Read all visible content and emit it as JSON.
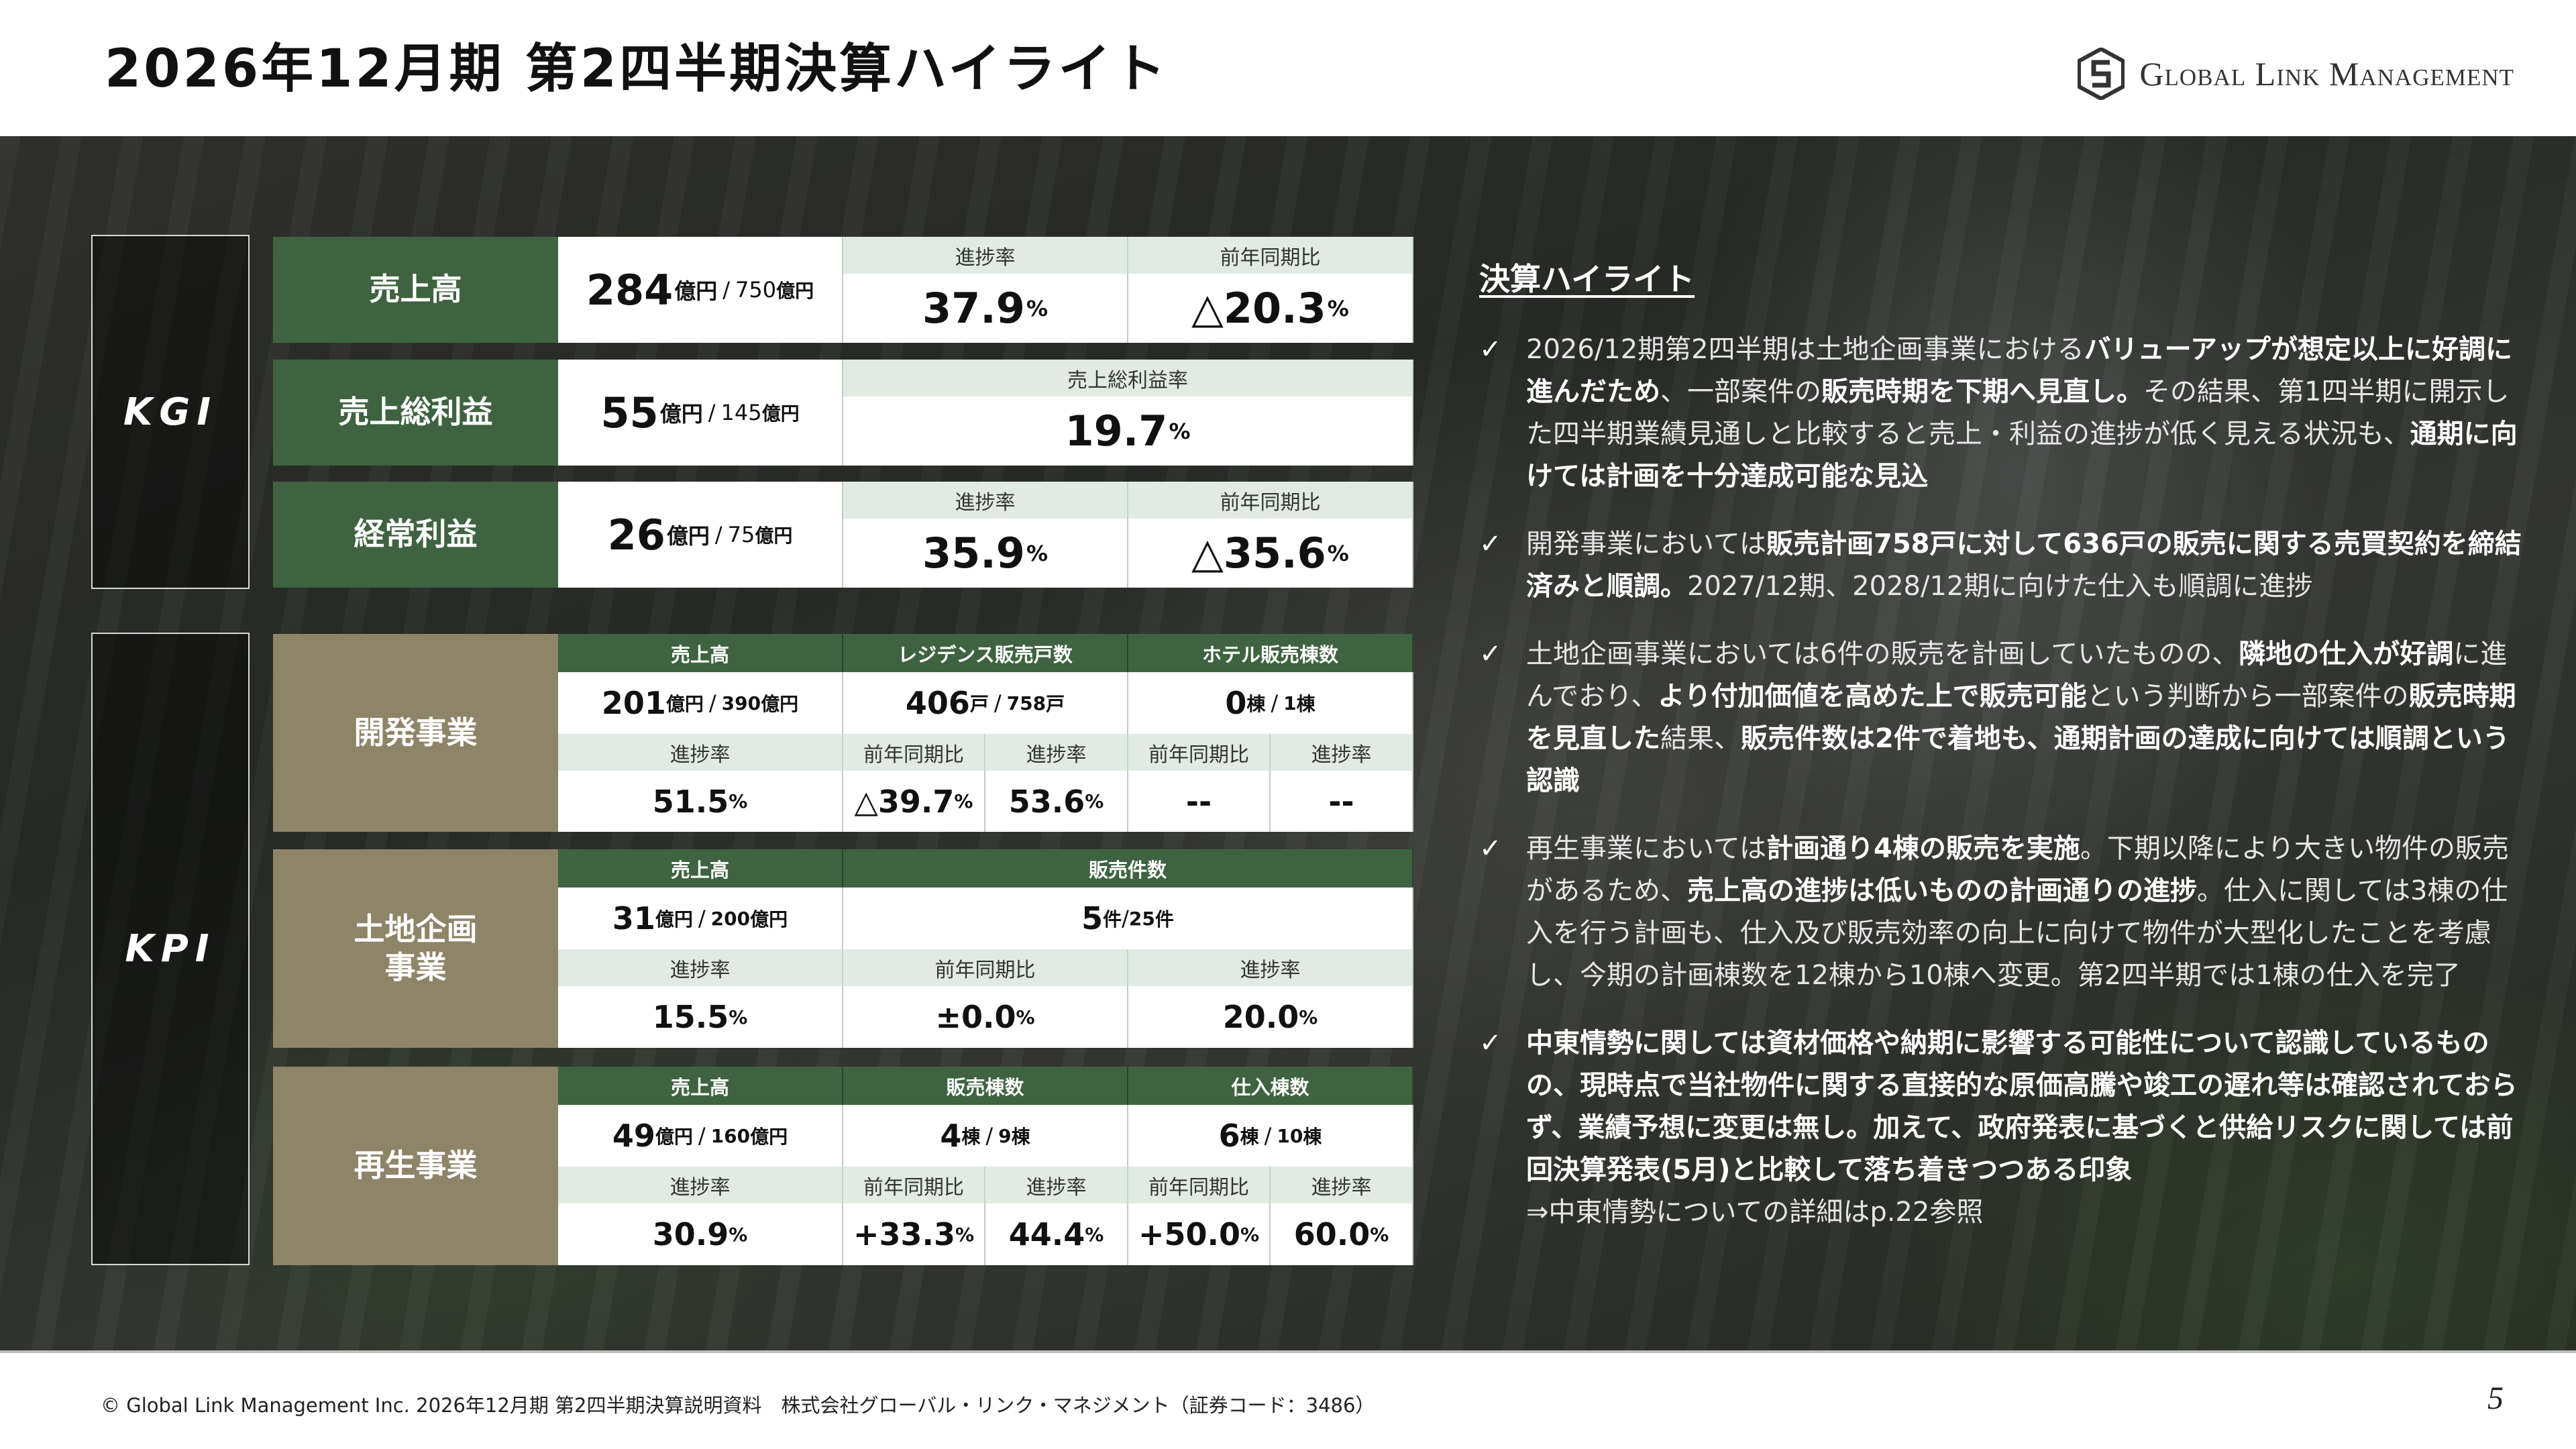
{
  "title": "2026年12月期 第2四半期決算ハイライト",
  "logo": {
    "icon": "gs-monogram-icon",
    "text": "Global Link Management"
  },
  "footer": {
    "text": "© Global Link Management Inc. 2026年12月期 第2四半期決算説明資料　株式会社グローバル・リンク・マネジメント（証券コード：3486）",
    "page": "5"
  },
  "kgi": {
    "label": "KGI",
    "rows": [
      {
        "name": "売上高",
        "value": "284",
        "unit": "億円",
        "target": "750",
        "target_unit": "億円",
        "metrics": [
          {
            "label": "進捗率",
            "value": "37.9",
            "unit": "%"
          },
          {
            "label": "前年同期比",
            "value": "△20.3",
            "unit": "%"
          }
        ]
      },
      {
        "name": "売上総利益",
        "value": "55",
        "unit": "億円",
        "target": "145",
        "target_unit": "億円",
        "metrics": [
          {
            "label": "売上総利益率",
            "value": "19.7",
            "unit": "%"
          }
        ]
      },
      {
        "name": "経常利益",
        "value": "26",
        "unit": "億円",
        "target": "75",
        "target_unit": "億円",
        "metrics": [
          {
            "label": "進捗率",
            "value": "35.9",
            "unit": "%"
          },
          {
            "label": "前年同期比",
            "value": "△35.6",
            "unit": "%"
          }
        ]
      }
    ]
  },
  "kpi": {
    "label": "KPI",
    "dev": {
      "name": "開発事業",
      "headers": [
        "売上高",
        "レジデンス販売戸数",
        "ホテル販売棟数"
      ],
      "values": [
        {
          "v": "201",
          "u": "億円",
          "t": "390",
          "tu": "億円"
        },
        {
          "v": "406",
          "u": "戸",
          "t": "758",
          "tu": "戸"
        },
        {
          "v": "0",
          "u": "棟",
          "t": "1",
          "tu": "棟"
        }
      ],
      "sub_labels": [
        "進捗率",
        "前年同期比",
        "進捗率",
        "前年同期比",
        "進捗率"
      ],
      "sub_values": [
        {
          "v": "51.5",
          "u": "%"
        },
        {
          "v": "△39.7",
          "u": "%"
        },
        {
          "v": "53.6",
          "u": "%"
        },
        {
          "v": "--",
          "u": ""
        },
        {
          "v": "--",
          "u": ""
        }
      ]
    },
    "land": {
      "name": "土地企画\n事業",
      "headers": [
        "売上高",
        "販売件数"
      ],
      "values": [
        {
          "v": "31",
          "u": "億円",
          "t": "200",
          "tu": "億円"
        },
        {
          "v": "5",
          "u": "件",
          "t": "25",
          "tu": "件"
        }
      ],
      "sub_labels": [
        "進捗率",
        "前年同期比",
        "進捗率"
      ],
      "sub_values": [
        {
          "v": "15.5",
          "u": "%"
        },
        {
          "v": "±0.0",
          "u": "%"
        },
        {
          "v": "20.0",
          "u": "%"
        }
      ]
    },
    "regen": {
      "name": "再生事業",
      "headers": [
        "売上高",
        "販売棟数",
        "仕入棟数"
      ],
      "values": [
        {
          "v": "49",
          "u": "億円",
          "t": "160",
          "tu": "億円"
        },
        {
          "v": "4",
          "u": "棟",
          "t": "9",
          "tu": "棟"
        },
        {
          "v": "6",
          "u": "棟",
          "t": "10",
          "tu": "棟"
        }
      ],
      "sub_labels": [
        "進捗率",
        "前年同期比",
        "進捗率",
        "前年同期比",
        "進捗率"
      ],
      "sub_values": [
        {
          "v": "30.9",
          "u": "%"
        },
        {
          "v": "+33.3",
          "u": "%"
        },
        {
          "v": "44.4",
          "u": "%"
        },
        {
          "v": "+50.0",
          "u": "%"
        },
        {
          "v": "60.0",
          "u": "%"
        }
      ]
    }
  },
  "highlights": {
    "title": "決算ハイライト",
    "bullets": [
      [
        {
          "t": "2026/12期第2四半期は土地企画事業における",
          "b": false
        },
        {
          "t": "バリューアップが想定以上に好調に進んだため",
          "b": true
        },
        {
          "t": "、一部案件の",
          "b": false
        },
        {
          "t": "販売時期を下期へ見直し。",
          "b": true
        },
        {
          "t": "その結果、第1四半期に開示した四半期業績見通しと比較すると売上・利益の進捗が低く見える状況も、",
          "b": false
        },
        {
          "t": "通期に向けては計画を十分達成可能な見込",
          "b": true
        }
      ],
      [
        {
          "t": "開発事業においては",
          "b": false
        },
        {
          "t": "販売計画758戸に対して636戸の販売に関する売買契約を締結済みと順調。",
          "b": true
        },
        {
          "t": "2027/12期、2028/12期に向けた仕入も順調に進捗",
          "b": false
        }
      ],
      [
        {
          "t": "土地企画事業においては6件の販売を計画していたものの、",
          "b": false
        },
        {
          "t": "隣地の仕入が好調",
          "b": true
        },
        {
          "t": "に進んでおり、",
          "b": false
        },
        {
          "t": "より付加価値を高めた上で販売可能",
          "b": true
        },
        {
          "t": "という判断から一部案件の",
          "b": false
        },
        {
          "t": "販売時期を見直した",
          "b": true
        },
        {
          "t": "結果、",
          "b": false
        },
        {
          "t": "販売件数は2件で着地も、通期計画の達成に向けては順調という認識",
          "b": true
        }
      ],
      [
        {
          "t": "再生事業においては",
          "b": false
        },
        {
          "t": "計画通り4棟の販売を実施",
          "b": true
        },
        {
          "t": "。下期以降により大きい物件の販売があるため、",
          "b": false
        },
        {
          "t": "売上高の進捗は低いものの計画通りの進捗",
          "b": true
        },
        {
          "t": "。仕入に関しては3棟の仕入を行う計画も、仕入及び販売効率の向上に向けて物件が大型化したことを考慮し、今期の計画棟数を12棟から10棟へ変更。第2四半期では1棟の仕入を完了",
          "b": false
        }
      ],
      [
        {
          "t": "中東情勢に関しては資材価格や納期に影響する可能性について認識しているものの、現時点で当社物件に関する直接的な原価高騰や竣工の遅れ等は確認されておらず、業績予想に変更は無し。加えて、政府発表に基づくと供給リスクに関しては前回決算発表(5月)と比較して落ち着きつつある印象",
          "b": true
        }
      ]
    ],
    "note": "⇒中東情勢についての詳細はp.22参照"
  }
}
